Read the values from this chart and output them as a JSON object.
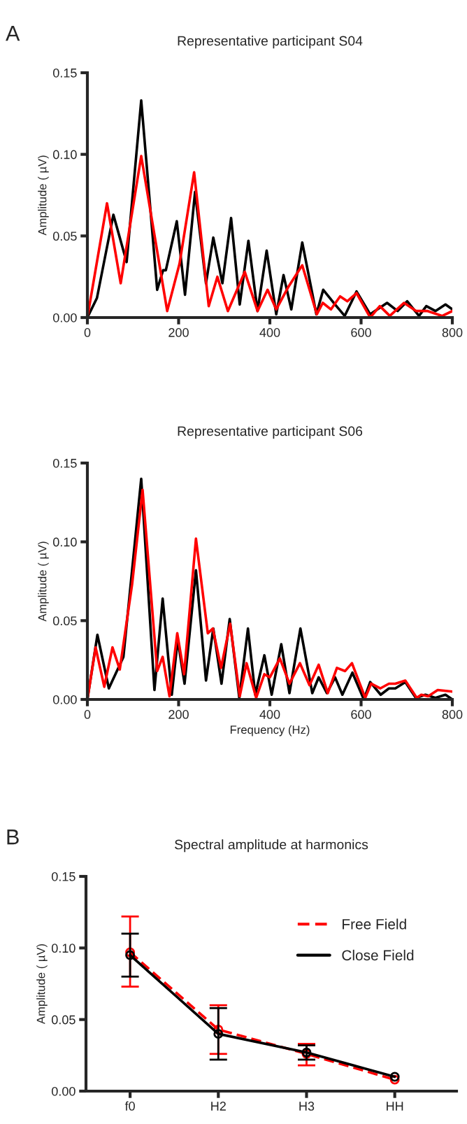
{
  "chart_data": [
    {
      "type": "line",
      "title": "Representative participant S04",
      "ylabel": "Amplitude ( µV)",
      "annotations": [
        "A"
      ],
      "xlim": [
        0,
        800
      ],
      "xticks": [
        0,
        200,
        400,
        600,
        800
      ],
      "ylim": [
        0,
        0.15
      ],
      "yticks": [
        {
          "value": 0,
          "label": "0.00"
        },
        {
          "value": 0.05,
          "label": "0.05"
        },
        {
          "value": 0.1,
          "label": "0.10"
        },
        {
          "value": 0.15,
          "label": "0.15"
        }
      ],
      "grid": false,
      "line_style": "solid",
      "series": [
        {
          "color": "#000000",
          "x": [
            0,
            21,
            57,
            86,
            118,
            153,
            166,
            172,
            196,
            214,
            236,
            260,
            276,
            296,
            315,
            334,
            353,
            373,
            393,
            414,
            430,
            447,
            471,
            502,
            517,
            543,
            564,
            590,
            620,
            657,
            680,
            701,
            727,
            743,
            763,
            785,
            800
          ],
          "values": [
            0,
            0.012,
            0.063,
            0.034,
            0.133,
            0.017,
            0.029,
            0.029,
            0.059,
            0.014,
            0.077,
            0.021,
            0.049,
            0.021,
            0.061,
            0.008,
            0.047,
            0.004,
            0.041,
            0.002,
            0.026,
            0.005,
            0.046,
            0.002,
            0.017,
            0.008,
            0.001,
            0.016,
            0.002,
            0.009,
            0.004,
            0.01,
            0.001,
            0.007,
            0.004,
            0.008,
            0.005
          ]
        },
        {
          "color": "#ff0000",
          "x": [
            0,
            43,
            73,
            118,
            175,
            202,
            234,
            266,
            285,
            308,
            345,
            373,
            395,
            414,
            441,
            471,
            503,
            516,
            534,
            554,
            570,
            590,
            620,
            641,
            663,
            694,
            721,
            746,
            778,
            800
          ],
          "values": [
            0,
            0.07,
            0.021,
            0.099,
            0.004,
            0.033,
            0.089,
            0.007,
            0.025,
            0.004,
            0.028,
            0.004,
            0.017,
            0.005,
            0.019,
            0.032,
            0.002,
            0.009,
            0.005,
            0.013,
            0.01,
            0.015,
            0.0,
            0.007,
            0.001,
            0.009,
            0.004,
            0.004,
            0.001,
            0.004
          ]
        }
      ]
    },
    {
      "type": "line",
      "title": "Representative participant S06",
      "xlabel": "Frequency (Hz)",
      "ylabel": "Amplitude ( µV)",
      "xlim": [
        0,
        800
      ],
      "xticks": [
        0,
        200,
        400,
        600,
        800
      ],
      "ylim": [
        0,
        0.15
      ],
      "yticks": [
        {
          "value": 0,
          "label": "0.00"
        },
        {
          "value": 0.05,
          "label": "0.05"
        },
        {
          "value": 0.1,
          "label": "0.10"
        },
        {
          "value": 0.15,
          "label": "0.15"
        }
      ],
      "grid": false,
      "line_style": "solid",
      "series": [
        {
          "color": "#000000",
          "x": [
            0,
            22,
            47,
            79,
            118,
            147,
            165,
            185,
            198,
            213,
            238,
            260,
            276,
            294,
            312,
            333,
            352,
            368,
            388,
            404,
            425,
            443,
            467,
            493,
            507,
            525,
            543,
            559,
            581,
            606,
            620,
            643,
            661,
            675,
            697,
            720,
            741,
            763,
            785,
            800
          ],
          "values": [
            0,
            0.041,
            0.007,
            0.027,
            0.14,
            0.006,
            0.064,
            0.003,
            0.038,
            0.01,
            0.082,
            0.012,
            0.045,
            0.01,
            0.051,
            0.001,
            0.045,
            0.003,
            0.028,
            0.003,
            0.035,
            0.004,
            0.045,
            0.004,
            0.014,
            0.004,
            0.014,
            0.003,
            0.017,
            0.0,
            0.011,
            0.003,
            0.007,
            0.007,
            0.011,
            0.001,
            0.003,
            0.001,
            0.003,
            0.0
          ]
        },
        {
          "color": "#ff0000",
          "x": [
            0,
            18,
            37,
            55,
            71,
            98,
            121,
            153,
            165,
            180,
            197,
            212,
            238,
            264,
            275,
            293,
            313,
            334,
            349,
            370,
            388,
            400,
            422,
            443,
            466,
            487,
            507,
            527,
            547,
            565,
            580,
            609,
            622,
            642,
            661,
            675,
            697,
            722,
            732,
            747,
            768,
            800
          ],
          "values": [
            0,
            0.033,
            0.008,
            0.033,
            0.019,
            0.073,
            0.133,
            0.018,
            0.027,
            0.002,
            0.042,
            0.016,
            0.102,
            0.042,
            0.045,
            0.02,
            0.048,
            0.002,
            0.023,
            0.001,
            0.016,
            0.014,
            0.026,
            0.01,
            0.023,
            0.009,
            0.022,
            0.004,
            0.02,
            0.018,
            0.023,
            0.001,
            0.01,
            0.007,
            0.01,
            0.01,
            0.012,
            0.001,
            0.003,
            0.002,
            0.006,
            0.005
          ]
        }
      ]
    },
    {
      "type": "line",
      "title": "Spectral amplitude at harmonics",
      "ylabel": "Amplitude ( µV)",
      "annotations": [
        "B"
      ],
      "categories": [
        "f0",
        "H2",
        "H3",
        "HH"
      ],
      "ylim": [
        0,
        0.15
      ],
      "yticks": [
        {
          "value": 0,
          "label": "0.00"
        },
        {
          "value": 0.05,
          "label": "0.05"
        },
        {
          "value": 0.1,
          "label": "0.10"
        },
        {
          "value": 0.15,
          "label": "0.15"
        }
      ],
      "grid": false,
      "legend": "top right",
      "marker": "circle",
      "series": [
        {
          "name": "Free Field",
          "color": "#ff0000",
          "line_style": "dashed",
          "values": [
            0.097,
            0.043,
            0.026,
            0.008
          ],
          "errors": [
            [
              0.073,
              0.122
            ],
            [
              0.026,
              0.06
            ],
            [
              0.018,
              0.033
            ],
            null
          ]
        },
        {
          "name": "Close Field",
          "color": "#000000",
          "line_style": "solid",
          "values": [
            0.095,
            0.04,
            0.027,
            0.01
          ],
          "errors": [
            [
              0.08,
              0.11
            ],
            [
              0.022,
              0.058
            ],
            [
              0.022,
              0.032
            ],
            null
          ]
        }
      ]
    }
  ]
}
